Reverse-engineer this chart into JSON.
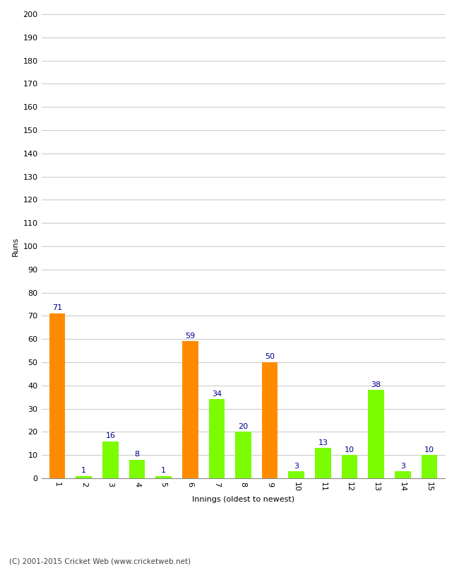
{
  "xlabel": "Innings (oldest to newest)",
  "ylabel": "Runs",
  "categories": [
    1,
    2,
    3,
    4,
    5,
    6,
    7,
    8,
    9,
    10,
    11,
    12,
    13,
    14,
    15
  ],
  "values": [
    71,
    1,
    16,
    8,
    1,
    59,
    34,
    20,
    50,
    3,
    13,
    10,
    38,
    3,
    10
  ],
  "colors": [
    "#FF8C00",
    "#7CFC00",
    "#7CFC00",
    "#7CFC00",
    "#7CFC00",
    "#FF8C00",
    "#7CFC00",
    "#7CFC00",
    "#FF8C00",
    "#7CFC00",
    "#7CFC00",
    "#7CFC00",
    "#7CFC00",
    "#7CFC00",
    "#7CFC00"
  ],
  "ylim": [
    0,
    200
  ],
  "yticks": [
    0,
    10,
    20,
    30,
    40,
    50,
    60,
    70,
    80,
    90,
    100,
    110,
    120,
    130,
    140,
    150,
    160,
    170,
    180,
    190,
    200
  ],
  "label_color": "#00008B",
  "background_color": "#ffffff",
  "grid_color": "#cccccc",
  "footer": "(C) 2001-2015 Cricket Web (www.cricketweb.net)"
}
